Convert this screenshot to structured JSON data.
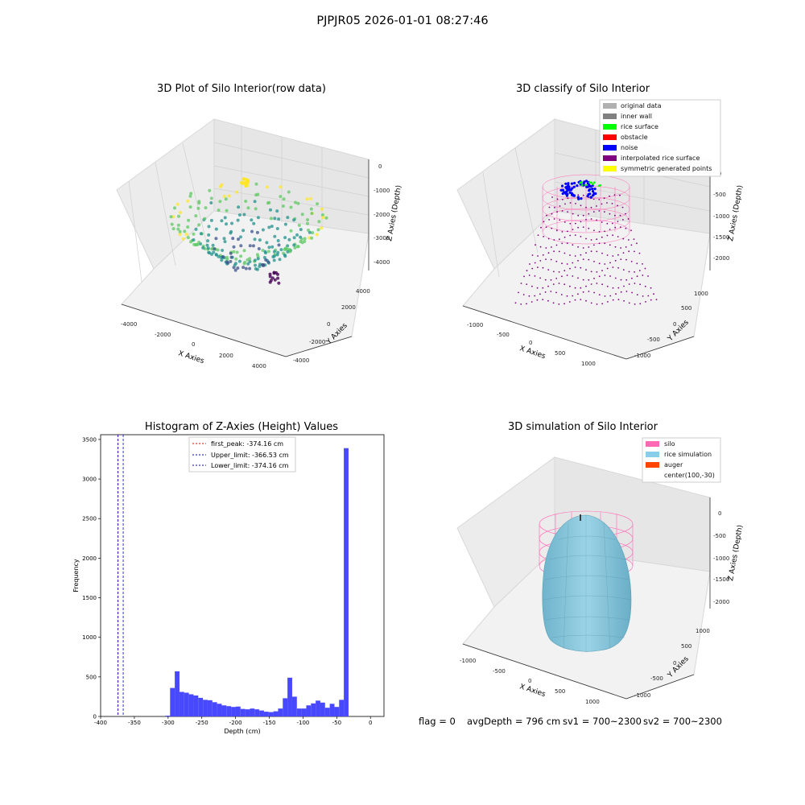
{
  "suptitle": "PJPJR05 2026-01-01 08:27:46",
  "footer": {
    "flag": "flag = 0",
    "avg_depth": "avgDepth = 796 cm",
    "sv1": "sv1 = 700~2300",
    "sv2": "sv2 = 700~2300"
  },
  "chart_data": [
    {
      "type": "scatter",
      "projection": "3d",
      "title": "3D Plot of Silo Interior(row data)",
      "xlabel": "X Axies",
      "ylabel": "Y Axies",
      "zlabel": "Z Axies (Depth)",
      "x_ticks": [
        "-4000",
        "-2000",
        "0",
        "2000",
        "4000"
      ],
      "y_ticks": [
        "-4000",
        "-2000",
        "0",
        "2000",
        "4000"
      ],
      "z_ticks": [
        "0",
        "-1000",
        "-2000",
        "-3000",
        "-4000"
      ],
      "xlim": [
        -4500,
        4500
      ],
      "ylim": [
        -4500,
        4500
      ],
      "zlim": [
        -4500,
        0
      ],
      "colormap": "viridis",
      "note": "bowl-shaped point cloud; yellow points near surface, purple points at bottom"
    },
    {
      "type": "scatter",
      "projection": "3d",
      "title": "3D classify of Silo Interior",
      "xlabel": "X Axies",
      "ylabel": "Y Axies",
      "zlabel": "Z Axies (Depth)",
      "x_ticks": [
        "-1000",
        "-500",
        "0",
        "500",
        "1000"
      ],
      "y_ticks": [
        "-1000",
        "-500",
        "0",
        "500",
        "1000"
      ],
      "z_ticks": [
        "0",
        "-500",
        "-1000",
        "-1500",
        "-2000"
      ],
      "legend_position": "top-right",
      "legend": [
        {
          "label": "original data",
          "color": "#b0b0b0"
        },
        {
          "label": "inner wall",
          "color": "#808080"
        },
        {
          "label": "rice surface",
          "color": "#00ff00"
        },
        {
          "label": "obstacle",
          "color": "#ff0000"
        },
        {
          "label": "noise",
          "color": "#0000ff"
        },
        {
          "label": "interpolated rice surface",
          "color": "#800080"
        },
        {
          "label": "symmetric generated points",
          "color": "#ffff00"
        }
      ]
    },
    {
      "type": "bar",
      "title": "Histogram of Z-Axies (Height) Values",
      "xlabel": "Depth (cm)",
      "ylabel": "Frequency",
      "xlim": [
        -400,
        20
      ],
      "ylim": [
        0,
        3560
      ],
      "x_ticks": [
        -400,
        -350,
        -300,
        -250,
        -200,
        -150,
        -100,
        -50,
        0
      ],
      "y_ticks": [
        0,
        500,
        1000,
        1500,
        2000,
        2500,
        3000,
        3500
      ],
      "bar_color": "#4848ff",
      "bin_width": 6.96,
      "bin_edges_start": -304,
      "values": [
        10,
        360,
        570,
        310,
        300,
        280,
        265,
        235,
        210,
        205,
        180,
        160,
        140,
        130,
        120,
        125,
        95,
        90,
        100,
        90,
        75,
        60,
        55,
        65,
        100,
        230,
        490,
        250,
        100,
        100,
        140,
        165,
        200,
        175,
        110,
        160,
        120,
        210,
        3390
      ],
      "legend_position": "top-center",
      "lines": [
        {
          "label": "first_peak: -374.16 cm",
          "x": -374.16,
          "color": "#ff0000",
          "style": "dashed"
        },
        {
          "label": "Upper_limit: -366.53 cm",
          "x": -366.53,
          "color": "#0000cc",
          "style": "dashed"
        },
        {
          "label": "Lower_limit: -374.16 cm",
          "x": -374.16,
          "color": "#0000cc",
          "style": "dashed"
        }
      ]
    },
    {
      "type": "surface",
      "projection": "3d",
      "title": "3D simulation of Silo Interior",
      "xlabel": "X Axies",
      "ylabel": "Y Axies",
      "zlabel": "Z Axies (Depth)",
      "x_ticks": [
        "-1000",
        "-500",
        "0",
        "500",
        "1000"
      ],
      "y_ticks": [
        "-1000",
        "-500",
        "0",
        "500",
        "1000"
      ],
      "z_ticks": [
        "0",
        "-500",
        "-1000",
        "-1500",
        "-2000"
      ],
      "legend_position": "top-right",
      "legend": [
        {
          "label": "silo",
          "color": "#ff69b4"
        },
        {
          "label": "rice simulation",
          "color": "#87ceeb"
        },
        {
          "label": "auger",
          "color": "#ff4500"
        },
        {
          "label": "center(100,-30)",
          "color": ""
        }
      ]
    }
  ]
}
